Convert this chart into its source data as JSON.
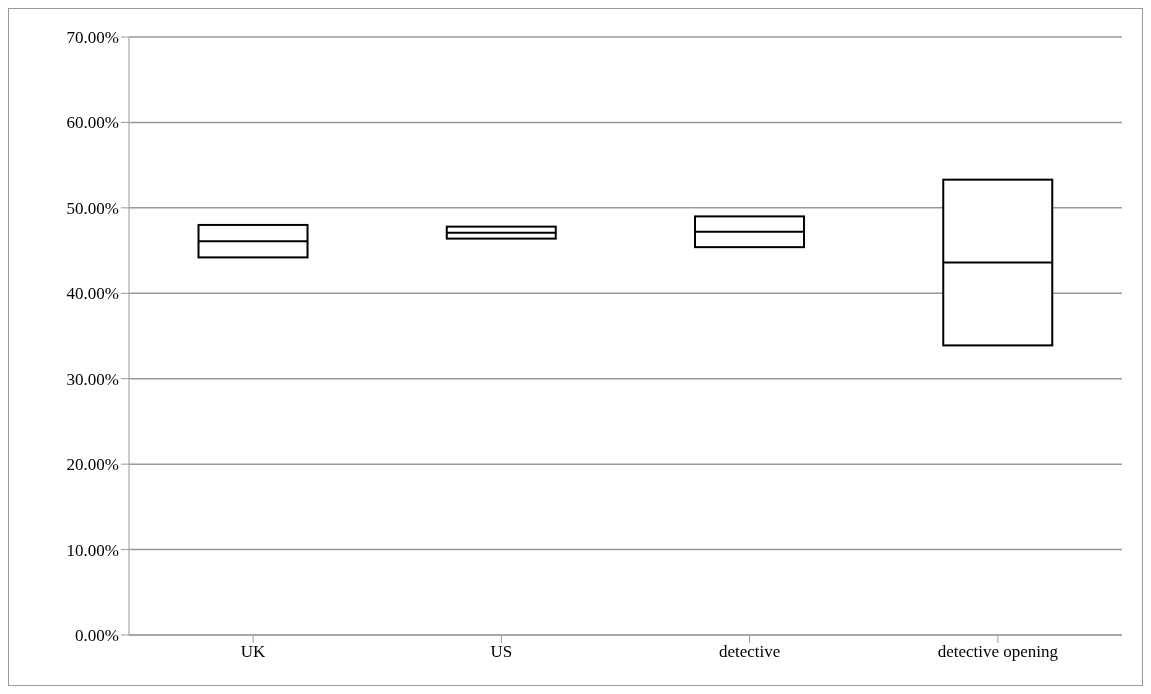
{
  "chart_data": {
    "type": "box",
    "categories": [
      "UK",
      "US",
      "detective",
      "detective opening"
    ],
    "boxes": [
      {
        "low": 44.2,
        "q1": 44.2,
        "median": 46.1,
        "q3": 48.0,
        "high": 48.0
      },
      {
        "low": 46.4,
        "q1": 46.4,
        "median": 47.1,
        "q3": 47.8,
        "high": 47.8
      },
      {
        "low": 45.4,
        "q1": 45.4,
        "median": 47.2,
        "q3": 49.0,
        "high": 49.0
      },
      {
        "low": 33.9,
        "q1": 33.9,
        "median": 43.6,
        "q3": 53.3,
        "high": 53.3
      }
    ],
    "color": "#ffffff",
    "ylim": [
      0,
      70
    ],
    "yticks": [
      {
        "value": 0,
        "label": "0.00%"
      },
      {
        "value": 10,
        "label": "10.00%"
      },
      {
        "value": 20,
        "label": "20.00%"
      },
      {
        "value": 30,
        "label": "30.00%"
      },
      {
        "value": 40,
        "label": "40.00%"
      },
      {
        "value": 50,
        "label": "50.00%"
      },
      {
        "value": 60,
        "label": "60.00%"
      },
      {
        "value": 70,
        "label": "70.00%"
      }
    ],
    "grid": "y",
    "legend": false
  }
}
